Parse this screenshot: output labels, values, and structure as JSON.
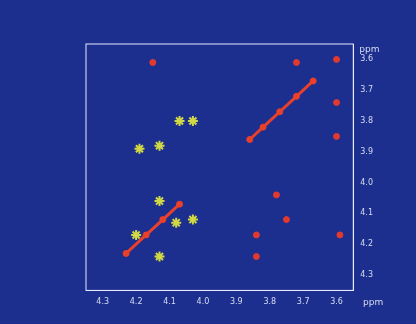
{
  "chart_data": {
    "type": "scatter",
    "x_label": "ppm",
    "y_label": "ppm",
    "xlim": [
      4.35,
      3.55
    ],
    "ylim": [
      4.35,
      3.55
    ],
    "xticks": [
      4.3,
      4.2,
      4.1,
      {
        "value": 4,
        "label": "4.0"
      },
      3.9,
      3.8,
      3.7,
      3.6
    ],
    "yticks": [
      3.6,
      3.7,
      3.8,
      3.9,
      {
        "value": 4,
        "label": "4.0"
      },
      4.1,
      4.2,
      4.3
    ],
    "grid": false,
    "series": [
      {
        "color": "#e8402a",
        "marker": "circle",
        "line_style": "solid",
        "x": [
          3.67,
          3.72,
          3.77,
          3.82,
          3.86
        ],
        "y": [
          3.67,
          3.72,
          3.77,
          3.82,
          3.86
        ]
      },
      {
        "color": "#e8402a",
        "marker": "circle",
        "line_style": "solid",
        "x": [
          4.07,
          4.12,
          4.17,
          4.23
        ],
        "y": [
          4.07,
          4.12,
          4.17,
          4.23
        ]
      },
      {
        "color": "#e03a30",
        "marker": "circle",
        "x": [
          3.6,
          4.15,
          3.72,
          3.6,
          3.6,
          3.78,
          3.75,
          3.84,
          3.84,
          3.59
        ],
        "y": [
          3.6,
          3.61,
          3.61,
          3.74,
          3.85,
          4.04,
          4.12,
          4.17,
          4.24,
          4.17
        ]
      },
      {
        "color": "#d0d844",
        "marker": "star",
        "x": [
          4.07,
          4.03,
          4.19,
          4.13,
          4.13,
          4.03,
          4.2,
          4.13,
          4.08
        ],
        "y": [
          3.8,
          3.8,
          3.89,
          3.88,
          4.06,
          4.12,
          4.17,
          4.24,
          4.13
        ]
      }
    ]
  }
}
